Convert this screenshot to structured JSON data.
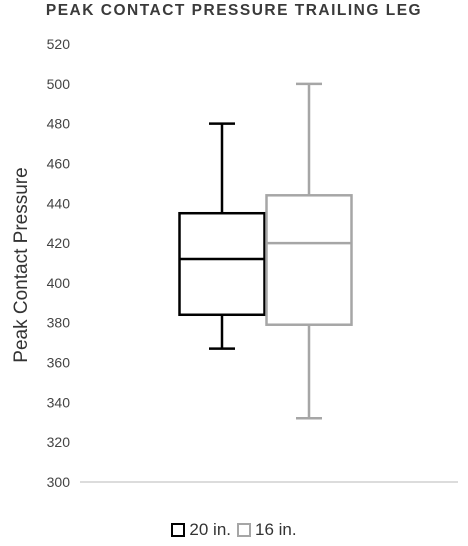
{
  "chart_data": {
    "type": "box",
    "title": "PEAK CONTACT PRESSURE TRAILING LEG",
    "ylabel": "Peak Contact  Pressure",
    "xlabel": "",
    "ylim": [
      300,
      520
    ],
    "yticks": [
      300,
      320,
      340,
      360,
      380,
      400,
      420,
      440,
      460,
      480,
      500,
      520
    ],
    "grid": false,
    "legend_position": "bottom",
    "series": [
      {
        "name": "20 in.",
        "color": "#000000",
        "min": 367,
        "q1": 384,
        "median": 412,
        "q3": 435,
        "max": 480
      },
      {
        "name": "16 in.",
        "color": "#a6a6a6",
        "min": 332,
        "q1": 379,
        "median": 420,
        "q3": 444,
        "max": 500
      }
    ]
  }
}
